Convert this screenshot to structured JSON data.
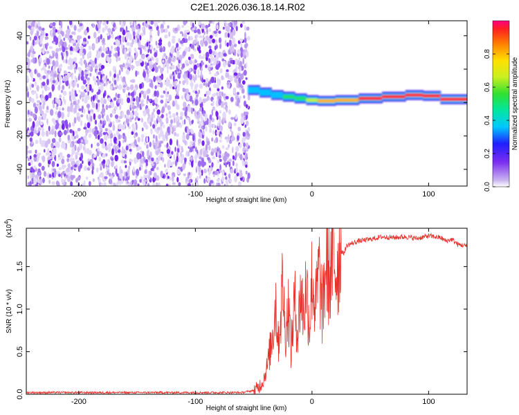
{
  "title": "C2E1.2026.036.18.14.R02",
  "chart_data": [
    {
      "type": "heatmap",
      "xlabel": "Height of straight line (km)",
      "ylabel": "Frequency (Hz)",
      "xlim": [
        -245,
        133
      ],
      "ylim": [
        -50,
        49
      ],
      "xticks": [
        -200,
        -100,
        0,
        100
      ],
      "yticks": [
        -40,
        -20,
        0,
        20,
        40
      ],
      "colorbar": {
        "label": "Normalized spectral amplitude",
        "range": [
          0,
          1
        ],
        "ticks": [
          "0.0",
          "0.2",
          "0.4",
          "0.6",
          "0.8"
        ]
      },
      "noise_region_x": [
        -245,
        -60
      ],
      "signal_track": [
        {
          "x": -55,
          "f": 8,
          "amp": 0.2
        },
        {
          "x": -45,
          "f": 7,
          "amp": 0.3
        },
        {
          "x": -35,
          "f": 5,
          "amp": 0.35
        },
        {
          "x": -25,
          "f": 4,
          "amp": 0.4
        },
        {
          "x": -15,
          "f": 3,
          "amp": 0.45
        },
        {
          "x": -5,
          "f": 2,
          "amp": 0.55
        },
        {
          "x": 5,
          "f": 1,
          "amp": 0.65
        },
        {
          "x": 20,
          "f": 1,
          "amp": 0.75
        },
        {
          "x": 40,
          "f": 2,
          "amp": 0.8
        },
        {
          "x": 60,
          "f": 3,
          "amp": 0.9
        },
        {
          "x": 80,
          "f": 4,
          "amp": 0.95
        },
        {
          "x": 95,
          "f": 5,
          "amp": 1.0
        },
        {
          "x": 110,
          "f": 3,
          "amp": 0.9
        },
        {
          "x": 133,
          "f": 1,
          "amp": 0.95
        }
      ]
    },
    {
      "type": "line",
      "xlabel": "Height of straight line (km)",
      "ylabel": "SNR (10 * v/v)",
      "y_multiplier": "(x10^4)",
      "xlim": [
        -245,
        133
      ],
      "ylim": [
        0,
        1.95
      ],
      "xticks": [
        -200,
        -100,
        0,
        100
      ],
      "yticks": [
        "0.0",
        "0.5",
        "1.0",
        "1.5"
      ],
      "series": [
        {
          "color": "#e8302a",
          "x": [
            -245,
            -150,
            -60,
            -48,
            -42,
            -38,
            -35,
            -33,
            -31,
            -29,
            -27,
            -25,
            -23,
            -20,
            -18,
            -15,
            -12,
            -10,
            -7,
            -5,
            -2,
            0,
            3,
            6,
            9,
            12,
            15,
            18,
            21,
            24,
            27,
            30,
            40,
            50,
            60,
            70,
            80,
            90,
            100,
            110,
            115,
            120,
            125,
            133
          ],
          "y": [
            0.02,
            0.02,
            0.02,
            0.05,
            0.15,
            0.35,
            0.6,
            0.8,
            1.1,
            0.6,
            0.9,
            1.35,
            0.7,
            1.05,
            0.5,
            1.1,
            0.7,
            1.2,
            0.95,
            1.3,
            0.8,
            1.4,
            1.0,
            1.45,
            0.95,
            1.55,
            1.35,
            1.6,
            1.45,
            1.7,
            1.65,
            1.75,
            1.8,
            1.82,
            1.85,
            1.84,
            1.85,
            1.83,
            1.86,
            1.84,
            1.8,
            1.82,
            1.76,
            1.74
          ]
        }
      ]
    }
  ]
}
